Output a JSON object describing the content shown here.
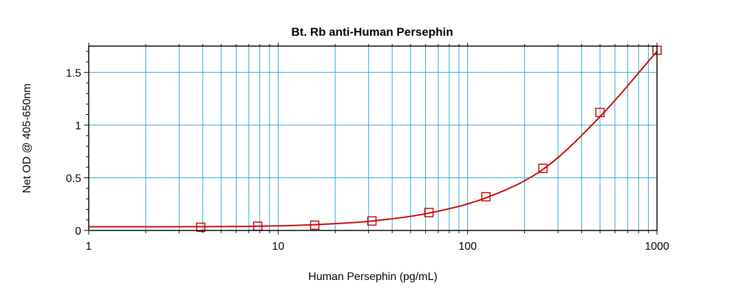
{
  "chart_data": {
    "type": "scatter",
    "title": "Bt. Rb anti-Human Persephin",
    "xlabel": "Human Persephin (pg/mL)",
    "ylabel": "Net OD @ 405-650nm",
    "xscale": "log",
    "xlim": [
      1,
      1000
    ],
    "ylim": [
      0,
      1.75
    ],
    "grid": true,
    "x_ticks": [
      {
        "value": 1,
        "label": "1"
      },
      {
        "value": 10,
        "label": "10"
      },
      {
        "value": 100,
        "label": "100"
      },
      {
        "value": 1000,
        "label": "1000"
      }
    ],
    "y_ticks": [
      {
        "value": 0,
        "label": "0"
      },
      {
        "value": 0.5,
        "label": "0.5"
      },
      {
        "value": 1,
        "label": "1"
      },
      {
        "value": 1.5,
        "label": "1.5"
      }
    ],
    "series": [
      {
        "marker": "square",
        "color": "#cc0000",
        "x": [
          3.9,
          7.8,
          15.6,
          31.25,
          62.5,
          125,
          250,
          500,
          1000
        ],
        "y": [
          0.03,
          0.04,
          0.05,
          0.09,
          0.17,
          0.32,
          0.59,
          1.12,
          1.71
        ]
      }
    ],
    "fit_curve": {
      "color": "#cc0000",
      "x": [
        1,
        2,
        3.9,
        7.8,
        15.6,
        31.25,
        62.5,
        125,
        250,
        500,
        1000
      ],
      "y": [
        0.035,
        0.035,
        0.036,
        0.04,
        0.055,
        0.09,
        0.165,
        0.31,
        0.58,
        1.08,
        1.7
      ]
    },
    "colors": {
      "grid": "#22aadd",
      "axis": "#000000",
      "series": "#cc0000"
    }
  }
}
